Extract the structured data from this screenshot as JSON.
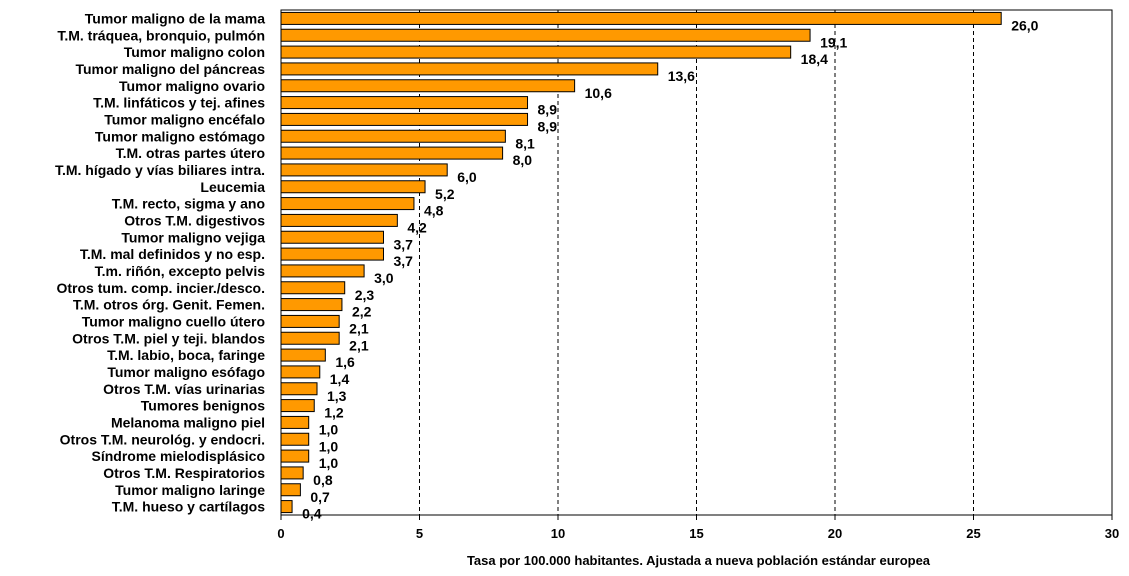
{
  "chart_data": {
    "type": "bar",
    "orientation": "horizontal",
    "title": "",
    "xlabel": "Tasa por 100.000 habitantes. Ajustada a nueva población estándar europea",
    "ylabel": "",
    "xlim": [
      0,
      30
    ],
    "xticks": [
      0,
      5,
      10,
      15,
      20,
      25,
      30
    ],
    "grid": "vertical-dashed",
    "bar_color": "#FF9900",
    "bar_edge_color": "#000000",
    "categories": [
      "Tumor maligno de la mama",
      "T.M. tráquea, bronquio,  pulmón",
      "Tumor maligno colon",
      "Tumor maligno del páncreas",
      "Tumor maligno ovario",
      "T.M. linfáticos y tej. afines",
      "Tumor maligno encéfalo",
      "Tumor maligno estómago",
      "T.M. otras partes útero",
      "T.M. hígado y vías biliares intra.",
      "Leucemia",
      "T.M. recto, sigma y ano",
      "Otros T.M. digestivos",
      "Tumor maligno vejiga",
      "T.M. mal definidos y no esp.",
      "T.m. riñón, excepto pelvis",
      "Otros tum. comp. incier./desco.",
      "T.M. otros órg. Genit. Femen.",
      "Tumor maligno cuello útero",
      "Otros T.M. piel y teji. blandos",
      "T.M. labio, boca, faringe",
      "Tumor maligno esófago",
      "Otros T.M.  vías urinarias",
      "Tumores benignos",
      "Melanoma maligno piel",
      "Otros T.M. neurológ. y endocri.",
      "Síndrome mielodisplásico",
      "Otros T.M. Respiratorios",
      "Tumor maligno laringe",
      "T.M.  hueso y cartílagos"
    ],
    "values": [
      26.0,
      19.1,
      18.4,
      13.6,
      10.6,
      8.9,
      8.9,
      8.1,
      8.0,
      6.0,
      5.2,
      4.8,
      4.2,
      3.7,
      3.7,
      3.0,
      2.3,
      2.2,
      2.1,
      2.1,
      1.6,
      1.4,
      1.3,
      1.2,
      1.0,
      1.0,
      1.0,
      0.8,
      0.7,
      0.4
    ],
    "value_labels": [
      "26,0",
      "19,1",
      "18,4",
      "13,6",
      "10,6",
      "8,9",
      "8,9",
      "8,1",
      "8,0",
      "6,0",
      "5,2",
      "4,8",
      "4,2",
      "3,7",
      "3,7",
      "3,0",
      "2,3",
      "2,2",
      "2,1",
      "2,1",
      "1,6",
      "1,4",
      "1,3",
      "1,2",
      "1,0",
      "1,0",
      "1,0",
      "0,8",
      "0,7",
      "0,4"
    ]
  }
}
